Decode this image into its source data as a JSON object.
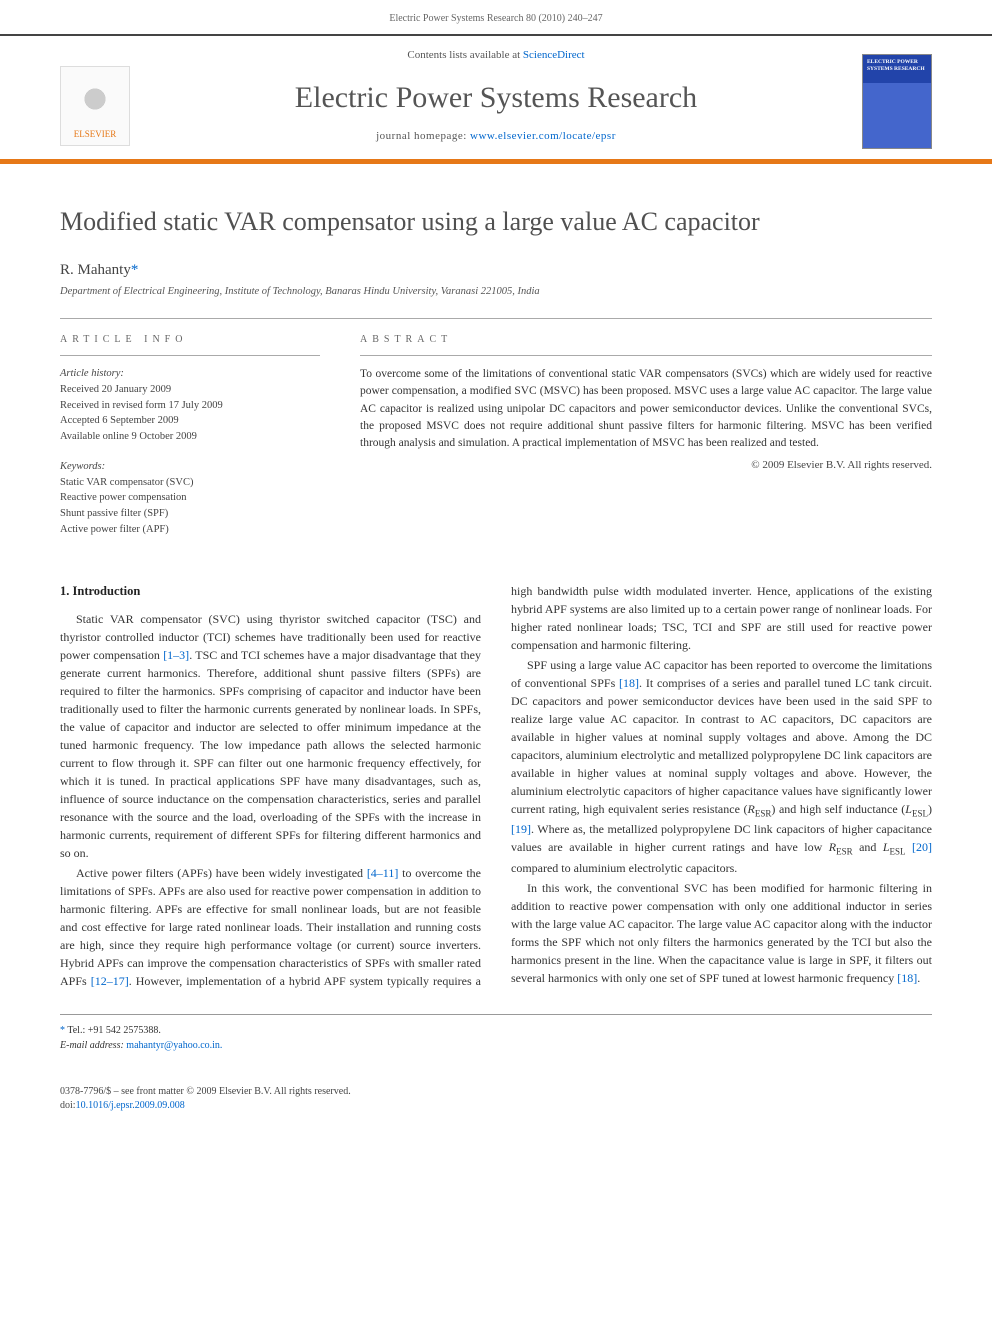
{
  "page_header": "Electric Power Systems Research 80 (2010) 240–247",
  "banner": {
    "contents_prefix": "Contents lists available at ",
    "contents_link": "ScienceDirect",
    "journal_title": "Electric Power Systems Research",
    "homepage_prefix": "journal homepage: ",
    "homepage_url": "www.elsevier.com/locate/epsr",
    "elsevier_label": "ELSEVIER",
    "cover_label": "ELECTRIC POWER SYSTEMS RESEARCH"
  },
  "article": {
    "title": "Modified static VAR compensator using a large value AC capacitor",
    "author": "R. Mahanty",
    "author_mark": "*",
    "affiliation": "Department of Electrical Engineering, Institute of Technology, Banaras Hindu University, Varanasi 221005, India"
  },
  "info": {
    "heading": "ARTICLE INFO",
    "history_label": "Article history:",
    "received": "Received 20 January 2009",
    "revised": "Received in revised form 17 July 2009",
    "accepted": "Accepted 6 September 2009",
    "online": "Available online 9 October 2009",
    "keywords_label": "Keywords:",
    "kw1": "Static VAR compensator (SVC)",
    "kw2": "Reactive power compensation",
    "kw3": "Shunt passive filter (SPF)",
    "kw4": "Active power filter (APF)"
  },
  "abstract": {
    "heading": "ABSTRACT",
    "text": "To overcome some of the limitations of conventional static VAR compensators (SVCs) which are widely used for reactive power compensation, a modified SVC (MSVC) has been proposed. MSVC uses a large value AC capacitor. The large value AC capacitor is realized using unipolar DC capacitors and power semiconductor devices. Unlike the conventional SVCs, the proposed MSVC does not require additional shunt passive filters for harmonic filtering. MSVC has been verified through analysis and simulation. A practical implementation of MSVC has been realized and tested.",
    "copyright": "© 2009 Elsevier B.V. All rights reserved."
  },
  "body": {
    "section1_title": "1. Introduction",
    "p1a": "Static VAR compensator (SVC) using thyristor switched capacitor (TSC) and thyristor controlled inductor (TCI) schemes have traditionally been used for reactive power compensation ",
    "ref1": "[1–3]",
    "p1b": ". TSC and TCI schemes have a major disadvantage that they generate current harmonics. Therefore, additional shunt passive filters (SPFs) are required to filter the harmonics. SPFs comprising of capacitor and inductor have been traditionally used to filter the harmonic currents generated by nonlinear loads. In SPFs, the value of capacitor and inductor are selected to offer minimum impedance at the tuned harmonic frequency. The low impedance path allows the selected harmonic current to flow through it. SPF can filter out one harmonic frequency effectively, for which it is tuned. In practical applications SPF have many disadvantages, such as, influence of source inductance on the compensation characteristics, series and parallel resonance with the source and the load, overloading of the SPFs with the increase in harmonic currents, requirement of different SPFs for filtering different harmonics and so on.",
    "p2a": "Active power filters (APFs) have been widely investigated ",
    "ref2": "[4–11]",
    "p2b": " to overcome the limitations of SPFs. APFs are also used for reactive power compensation in addition to harmonic filtering. APFs are effective for small nonlinear loads, but are not feasible and cost effective for large rated nonlinear loads. Their installation and running costs are high, since they require high performance voltage (or current) source inverters. Hybrid APFs can improve the com",
    "p2c": "pensation characteristics of SPFs with smaller rated APFs ",
    "ref3": "[12–17]",
    "p2d": ". However, implementation of a hybrid APF system typically requires a high bandwidth pulse width modulated inverter. Hence, applications of the existing hybrid APF systems are also limited up to a certain power range of nonlinear loads. For higher rated nonlinear loads; TSC, TCI and SPF are still used for reactive power compensation and harmonic filtering.",
    "p3a": "SPF using a large value AC capacitor has been reported to overcome the limitations of conventional SPFs ",
    "ref4": "[18]",
    "p3b": ". It comprises of a series and parallel tuned LC tank circuit. DC capacitors and power semiconductor devices have been used in the said SPF to realize large value AC capacitor. In contrast to AC capacitors, DC capacitors are available in higher values at nominal supply voltages and above. Among the DC capacitors, aluminium electrolytic and metallized polypropylene DC link capacitors are available in higher values at nominal supply voltages and above. However, the aluminium electrolytic capacitors of higher capacitance values have significantly lower current rating, high equivalent series resistance (",
    "resr": "R",
    "resr_sub": "ESR",
    "p3c": ") and high self inductance (",
    "lesl": "L",
    "lesl_sub": "ESL",
    "p3d": ") ",
    "ref5": "[19]",
    "p3e": ". Where as, the metallized polypropylene DC link capacitors of higher capacitance values are available in higher current ratings and have low ",
    "resr2": "R",
    "resr2_sub": "ESR",
    "p3f": " and ",
    "lesl2": "L",
    "lesl2_sub": "ESL",
    "p3g": " ",
    "ref6": "[20]",
    "p3h": " compared to aluminium electrolytic capacitors.",
    "p4a": "In this work, the conventional SVC has been modified for harmonic filtering in addition to reactive power compensation with only one additional inductor in series with the large value AC capacitor. The large value AC capacitor along with the inductor forms the SPF which not only filters the harmonics generated by the TCI but also the harmonics present in the line. When the capacitance value is large in SPF, it filters out several harmonics with only one set of SPF tuned at lowest harmonic frequency ",
    "ref7": "[18]",
    "p4b": "."
  },
  "footnote": {
    "star": "*",
    "tel_label": " Tel.: +91 542 2575388.",
    "email_label": "E-mail address: ",
    "email": "mahantyr@yahoo.co.in."
  },
  "footer": {
    "line1": "0378-7796/$ – see front matter © 2009 Elsevier B.V. All rights reserved.",
    "doi_label": "doi:",
    "doi": "10.1016/j.epsr.2009.09.008"
  },
  "colors": {
    "accent_orange": "#e67817",
    "link_blue": "#0066cc",
    "text_gray": "#505050",
    "border_gray": "#aaaaaa"
  }
}
